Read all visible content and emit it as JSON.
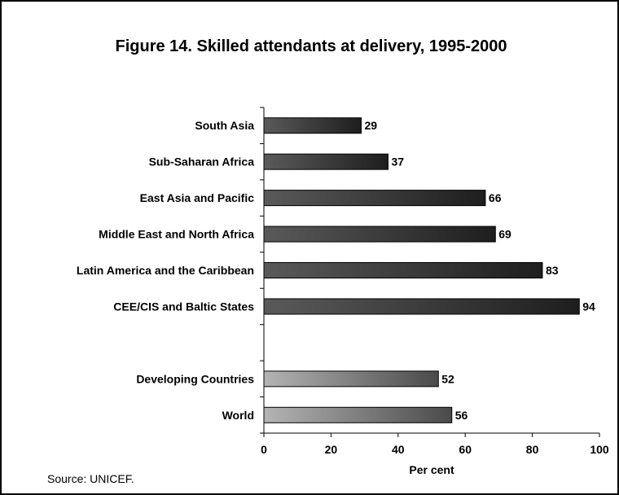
{
  "chart_data": {
    "type": "bar",
    "orientation": "horizontal",
    "title": "Figure 14. Skilled attendants at delivery, 1995-2000",
    "xlabel": "Per cent",
    "ylabel": "",
    "xlim": [
      0,
      100
    ],
    "xticks": [
      0,
      20,
      40,
      60,
      80,
      100
    ],
    "grid": false,
    "categories": [
      "South Asia",
      "Sub-Saharan Africa",
      "East Asia and Pacific",
      "Middle East and North Africa",
      "Latin America and the Caribbean",
      "CEE/CIS and Baltic States",
      "",
      "Developing Countries",
      "World"
    ],
    "values": [
      29,
      37,
      66,
      69,
      83,
      94,
      null,
      52,
      56
    ],
    "data_labels": [
      "29",
      "37",
      "66",
      "69",
      "83",
      "94",
      "",
      "52",
      "56"
    ],
    "bar_groups": [
      "region",
      "region",
      "region",
      "region",
      "region",
      "region",
      "gap",
      "aggregate",
      "aggregate"
    ],
    "colors": {
      "region_start": "#5a5a5a",
      "region_end": "#1e1e1e",
      "aggregate_start": "#b4b4b4",
      "aggregate_end": "#4a4a4a",
      "outline": "#000000"
    }
  },
  "source": "Source: UNICEF."
}
